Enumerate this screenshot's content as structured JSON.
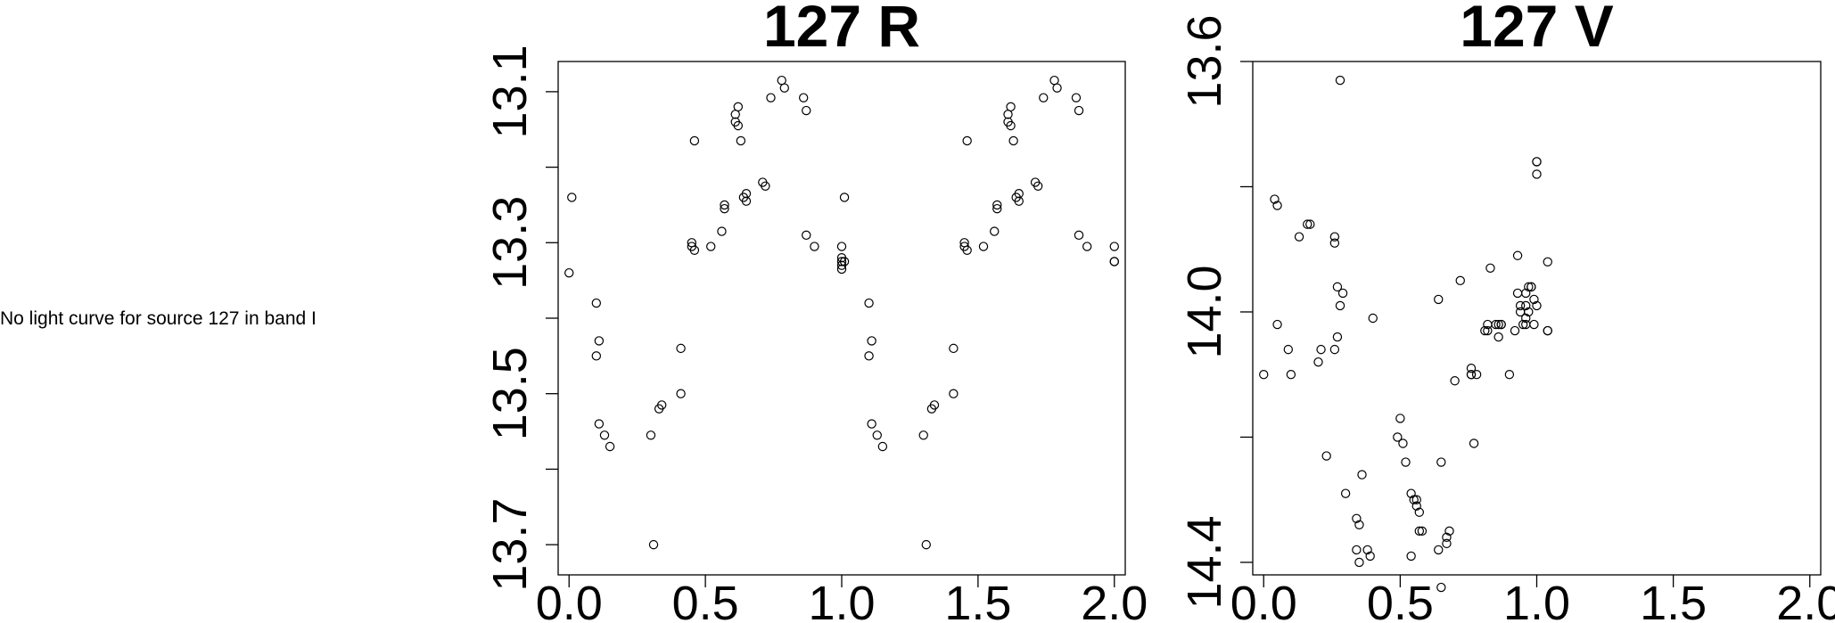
{
  "note": "No light curve for source 127 in band I",
  "chart_data": [
    {
      "type": "scatter",
      "title": "127 R",
      "xlabel": "",
      "ylabel": "",
      "xlim": [
        -0.04,
        2.04
      ],
      "ylim": [
        13.74,
        13.06
      ],
      "y_inverted": true,
      "xticks": [
        0.0,
        0.5,
        1.0,
        1.5,
        2.0
      ],
      "xticklabels": [
        "0.0",
        "0.5",
        "1.0",
        "1.5",
        "2.0"
      ],
      "yticks": [
        13.1,
        13.2,
        13.3,
        13.4,
        13.5,
        13.6,
        13.7
      ],
      "yticklabels": [
        "13.1",
        "",
        "13.3",
        "",
        "13.5",
        "",
        "13.7"
      ],
      "grid": false,
      "x": [
        0.0,
        0.01,
        0.1,
        0.1,
        0.11,
        0.11,
        0.13,
        0.15,
        0.3,
        0.31,
        0.33,
        0.34,
        0.41,
        0.41,
        0.45,
        0.45,
        0.46,
        0.46,
        0.52,
        0.56,
        0.57,
        0.57,
        0.61,
        0.61,
        0.62,
        0.62,
        0.63,
        0.64,
        0.65,
        0.65,
        0.71,
        0.72,
        0.74,
        0.78,
        0.79,
        0.86,
        0.87,
        0.87,
        0.9,
        1.0,
        1.0,
        1.0,
        1.0,
        1.01,
        1.0,
        1.01,
        1.1,
        1.1,
        1.11,
        1.11,
        1.13,
        1.15,
        1.3,
        1.31,
        1.33,
        1.34,
        1.41,
        1.41,
        1.45,
        1.45,
        1.46,
        1.46,
        1.52,
        1.56,
        1.57,
        1.57,
        1.61,
        1.61,
        1.62,
        1.62,
        1.63,
        1.64,
        1.65,
        1.65,
        1.71,
        1.72,
        1.74,
        1.78,
        1.79,
        1.86,
        1.87,
        1.87,
        1.9,
        2.0,
        2.0,
        2.0
      ],
      "y": [
        13.34,
        13.24,
        13.38,
        13.45,
        13.43,
        13.54,
        13.555,
        13.57,
        13.555,
        13.7,
        13.52,
        13.515,
        13.5,
        13.44,
        13.305,
        13.3,
        13.165,
        13.31,
        13.305,
        13.285,
        13.25,
        13.255,
        13.13,
        13.14,
        13.145,
        13.12,
        13.165,
        13.24,
        13.235,
        13.245,
        13.22,
        13.225,
        13.108,
        13.085,
        13.095,
        13.108,
        13.125,
        13.29,
        13.305,
        13.32,
        13.325,
        13.33,
        13.335,
        13.24,
        13.305,
        13.325,
        13.38,
        13.45,
        13.43,
        13.54,
        13.555,
        13.57,
        13.555,
        13.7,
        13.52,
        13.515,
        13.5,
        13.44,
        13.305,
        13.3,
        13.165,
        13.31,
        13.305,
        13.285,
        13.25,
        13.255,
        13.13,
        13.14,
        13.145,
        13.12,
        13.165,
        13.24,
        13.235,
        13.245,
        13.22,
        13.225,
        13.108,
        13.085,
        13.095,
        13.108,
        13.125,
        13.29,
        13.305,
        13.305,
        13.325,
        13.325
      ]
    },
    {
      "type": "scatter",
      "title": "127 V",
      "xlabel": "",
      "ylabel": "",
      "xlim": [
        -0.04,
        2.04
      ],
      "ylim": [
        14.42,
        13.6
      ],
      "y_inverted": true,
      "xticks": [
        0.0,
        0.5,
        1.0,
        1.5,
        2.0
      ],
      "xticklabels": [
        "0.0",
        "0.5",
        "1.0",
        "1.5",
        "2.0"
      ],
      "yticks": [
        13.6,
        13.8,
        14.0,
        14.2,
        14.4
      ],
      "yticklabels": [
        "13.6",
        "",
        "14.0",
        "",
        "14.4"
      ],
      "grid": false,
      "x": [
        0.0,
        0.04,
        0.05,
        0.05,
        0.09,
        0.1,
        0.13,
        0.16,
        0.17,
        0.2,
        0.21,
        0.23,
        0.26,
        0.26,
        0.26,
        0.27,
        0.27,
        0.28,
        0.28,
        0.29,
        0.3,
        0.34,
        0.34,
        0.35,
        0.35,
        0.36,
        0.38,
        0.39,
        0.4,
        0.49,
        0.5,
        0.51,
        0.52,
        0.54,
        0.54,
        0.55,
        0.56,
        0.57,
        0.56,
        0.57,
        0.58,
        0.64,
        0.64,
        0.65,
        0.65,
        0.67,
        0.67,
        0.68,
        0.7,
        0.72,
        0.76,
        0.76,
        0.76,
        0.78,
        0.77,
        0.81,
        0.82,
        0.82,
        0.83,
        0.85,
        0.86,
        0.86,
        0.87,
        0.87,
        0.9,
        0.92,
        0.93,
        0.93,
        0.94,
        0.94,
        0.95,
        0.96,
        0.96,
        0.96,
        0.96,
        0.97,
        0.97,
        0.98,
        0.98,
        0.99,
        0.99,
        1.0,
        1.0,
        1.0,
        1.0,
        1.04,
        1.04,
        1.04
      ],
      "y": [
        14.1,
        13.82,
        13.83,
        14.02,
        14.06,
        14.1,
        13.88,
        13.86,
        13.86,
        14.08,
        14.06,
        14.23,
        13.88,
        13.89,
        14.06,
        13.96,
        14.04,
        13.63,
        13.99,
        13.97,
        14.29,
        14.38,
        14.33,
        14.34,
        14.4,
        14.26,
        14.38,
        14.39,
        14.01,
        14.2,
        14.17,
        14.21,
        14.24,
        14.39,
        14.29,
        14.3,
        14.31,
        14.32,
        14.3,
        14.35,
        14.35,
        14.38,
        13.98,
        14.24,
        14.44,
        14.36,
        14.37,
        14.35,
        14.11,
        13.95,
        14.09,
        14.1,
        14.1,
        14.1,
        14.21,
        14.03,
        14.03,
        14.02,
        13.93,
        14.02,
        14.02,
        14.04,
        14.02,
        14.02,
        14.1,
        14.03,
        13.97,
        13.91,
        14.0,
        13.99,
        14.02,
        13.97,
        13.99,
        14.02,
        14.01,
        14.0,
        13.96,
        13.96,
        13.96,
        14.02,
        13.98,
        13.76,
        13.76,
        13.78,
        13.99,
        14.03,
        14.03,
        13.92
      ]
    }
  ]
}
